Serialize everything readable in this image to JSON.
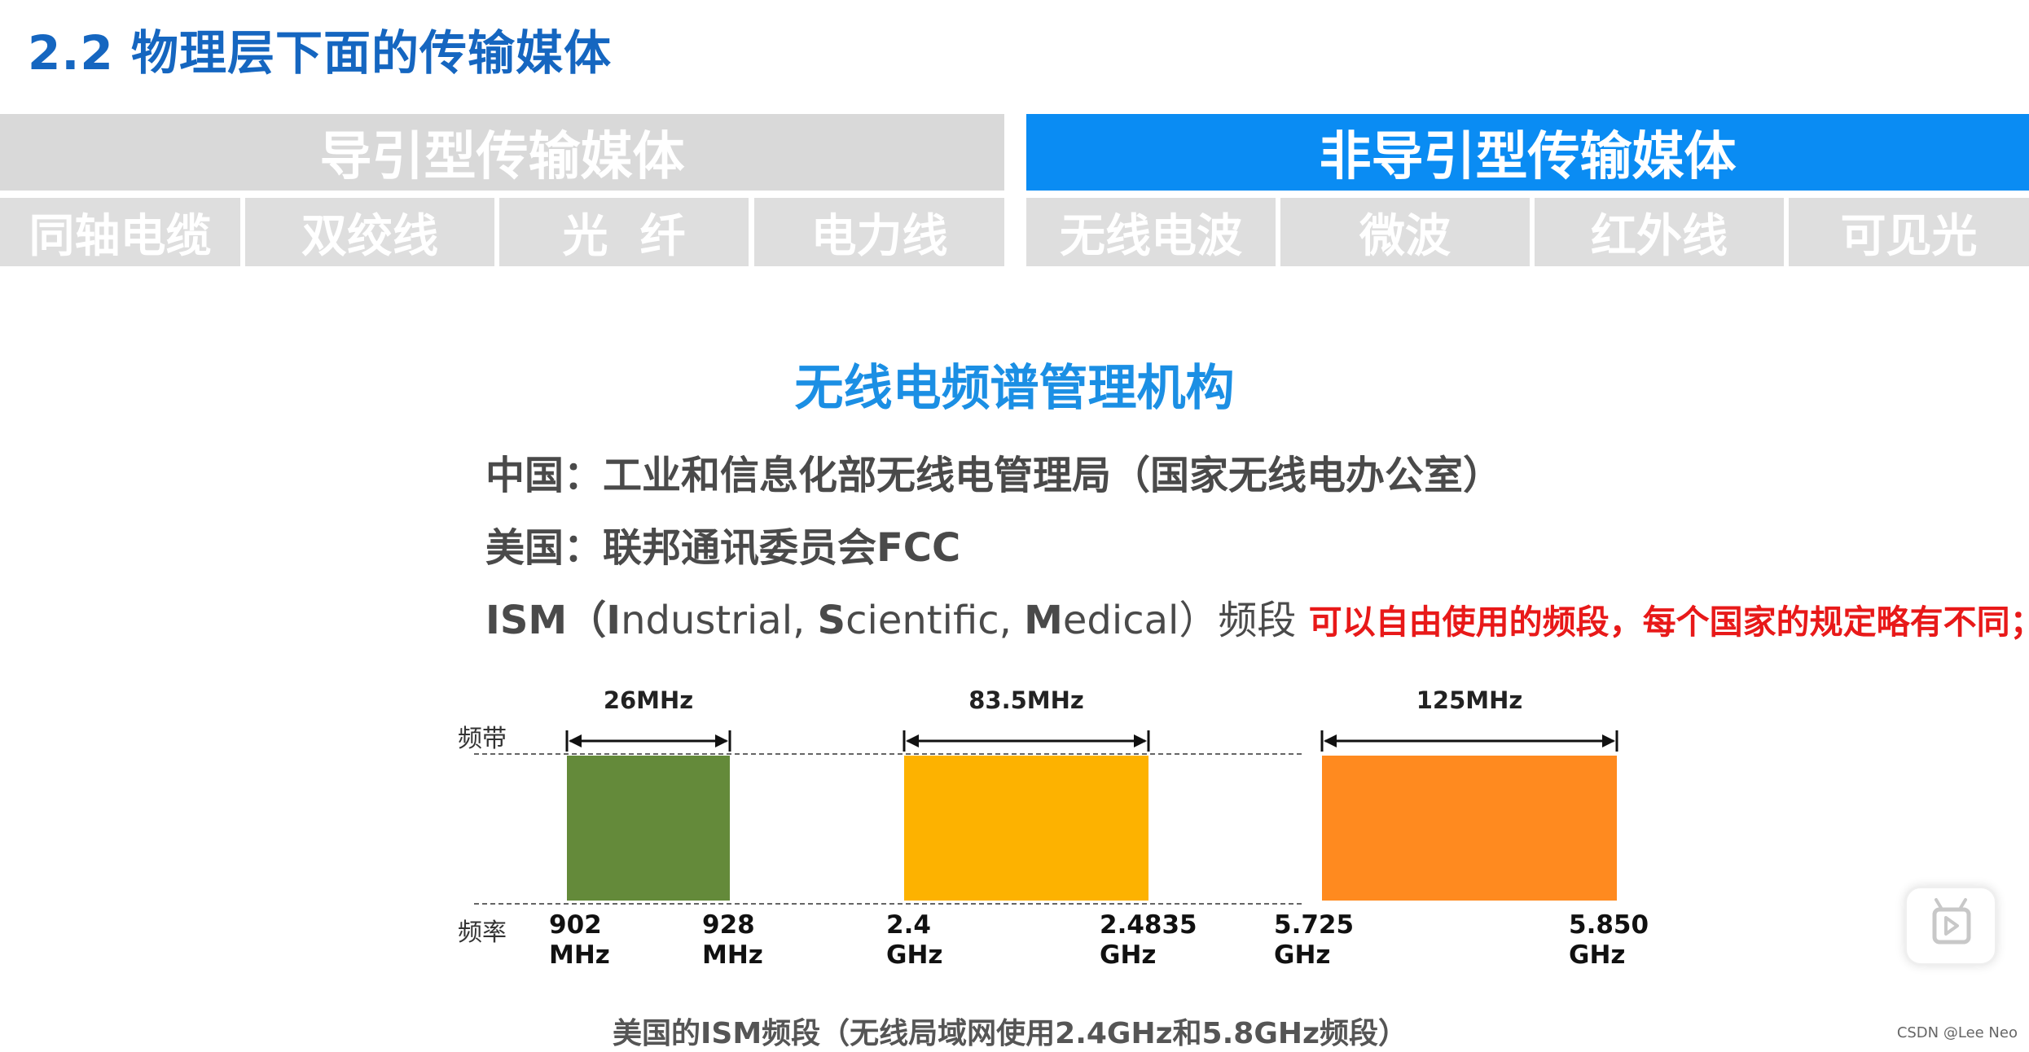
{
  "title": "2.2 物理层下面的传输媒体",
  "categories": {
    "guided": {
      "label": "导引型传输媒体",
      "items": [
        "同轴电缆",
        "双绞线",
        "光  纤",
        "电力线"
      ]
    },
    "unguided": {
      "label": "非导引型传输媒体",
      "items": [
        "无线电波",
        "微波",
        "红外线",
        "可见光"
      ]
    }
  },
  "section_heading": "无线电频谱管理机构",
  "lines": {
    "china": "中国：工业和信息化部无线电管理局（国家无线电办公室）",
    "usa": "美国：联邦通讯委员会FCC",
    "ism": {
      "p1": "ISM（",
      "i": "I",
      "p2": "ndustrial, ",
      "s": "S",
      "p3": "cientific, ",
      "m": "M",
      "p4": "edical）频段 ",
      "note": "可以自由使用的频段，每个国家的规定略有不同；"
    }
  },
  "chart_data": {
    "type": "bar",
    "axis_labels": {
      "band": "频带",
      "frequency": "频率"
    },
    "bands": [
      {
        "width_label": "26MHz",
        "low_label": [
          "902",
          "MHz"
        ],
        "high_label": [
          "928",
          "MHz"
        ],
        "low": 902,
        "high": 928,
        "unit": "MHz",
        "color": "#648a3a"
      },
      {
        "width_label": "83.5MHz",
        "low_label": [
          "2.4",
          "GHz"
        ],
        "high_label": [
          "2.4835",
          "GHz"
        ],
        "low": 2.4,
        "high": 2.4835,
        "unit": "GHz",
        "color": "#fdb200"
      },
      {
        "width_label": "125MHz",
        "low_label": [
          "5.725",
          "GHz"
        ],
        "high_label": [
          "5.850",
          "GHz"
        ],
        "low": 5.725,
        "high": 5.85,
        "unit": "GHz",
        "color": "#ff8a1f"
      }
    ]
  },
  "caption": "美国的ISM频段（无线局域网使用2.4GHz和5.8GHz频段）",
  "watermark": "CSDN @Lee Neo",
  "colors": {
    "title": "#1566c0",
    "accent_blue": "#0a8cf3",
    "note_red": "#e81919"
  },
  "icons": {
    "play": "play-icon"
  }
}
